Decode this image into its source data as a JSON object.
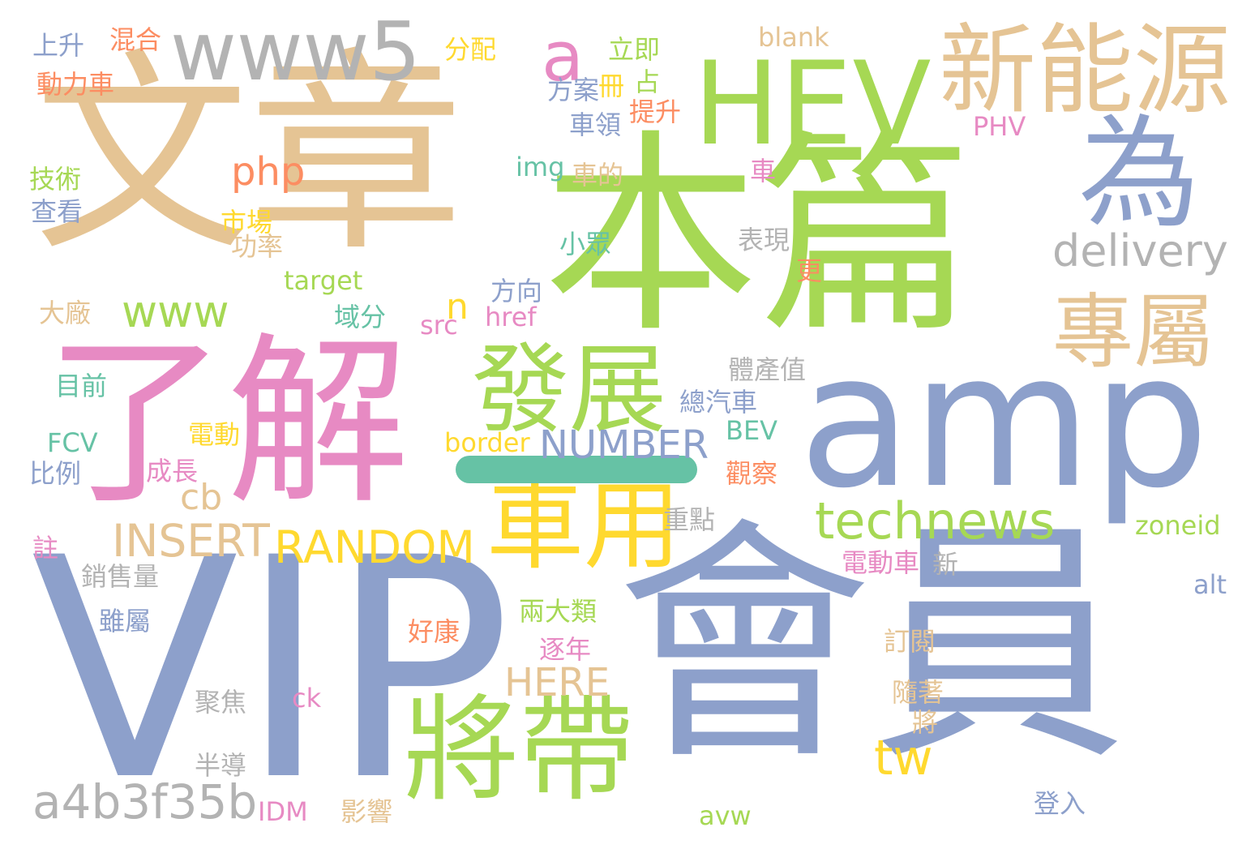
{
  "palette": {
    "tan": "#e5c494",
    "green": "#a6d854",
    "blue": "#8da0cb",
    "pink": "#e78ac3",
    "gray": "#b3b3b3",
    "orange": "#fc8d62",
    "yellow": "#ffd92f",
    "teal": "#66c2a5"
  },
  "words": [
    {
      "text": "文章",
      "color": "tan"
    },
    {
      "text": "本篇",
      "color": "green"
    },
    {
      "text": "VIP",
      "color": "blue"
    },
    {
      "text": "會員",
      "color": "blue"
    },
    {
      "text": "了解",
      "color": "pink"
    },
    {
      "text": "amp",
      "color": "blue"
    },
    {
      "text": "HEV",
      "color": "green"
    },
    {
      "text": "新能源",
      "color": "tan"
    },
    {
      "text": "www5",
      "color": "gray"
    },
    {
      "text": "為",
      "color": "blue"
    },
    {
      "text": "a",
      "color": "pink"
    },
    {
      "text": "將帶",
      "color": "green"
    },
    {
      "text": "發展",
      "color": "green"
    },
    {
      "text": "車用",
      "color": "yellow"
    },
    {
      "text": "專屬",
      "color": "tan"
    },
    {
      "text": "—",
      "color": "teal"
    },
    {
      "text": "delivery",
      "color": "gray"
    },
    {
      "text": "www",
      "color": "green"
    },
    {
      "text": "php",
      "color": "orange"
    },
    {
      "text": "technews",
      "color": "green"
    },
    {
      "text": "a4b3f35b",
      "color": "gray"
    },
    {
      "text": "tw",
      "color": "yellow"
    },
    {
      "text": "RANDOM",
      "color": "yellow"
    },
    {
      "text": "INSERT",
      "color": "tan"
    },
    {
      "text": "NUMBER",
      "color": "blue"
    },
    {
      "text": "HERE",
      "color": "tan"
    },
    {
      "text": "cb",
      "color": "tan"
    },
    {
      "text": "n",
      "color": "yellow"
    },
    {
      "text": "blank",
      "color": "tan"
    },
    {
      "text": "上升",
      "color": "blue"
    },
    {
      "text": "混合",
      "color": "orange"
    },
    {
      "text": "分配",
      "color": "yellow"
    },
    {
      "text": "立即",
      "color": "green"
    },
    {
      "text": "動力車",
      "color": "orange"
    },
    {
      "text": "方案",
      "color": "blue"
    },
    {
      "text": "冊",
      "color": "yellow"
    },
    {
      "text": "占",
      "color": "green"
    },
    {
      "text": "提升",
      "color": "orange"
    },
    {
      "text": "車領",
      "color": "blue"
    },
    {
      "text": "PHV",
      "color": "pink"
    },
    {
      "text": "技術",
      "color": "green"
    },
    {
      "text": "img",
      "color": "teal"
    },
    {
      "text": "車的",
      "color": "tan"
    },
    {
      "text": "車",
      "color": "pink"
    },
    {
      "text": "查看",
      "color": "blue"
    },
    {
      "text": "市場",
      "color": "yellow"
    },
    {
      "text": "功率",
      "color": "tan"
    },
    {
      "text": "小眾",
      "color": "teal"
    },
    {
      "text": "表現",
      "color": "gray"
    },
    {
      "text": "更",
      "color": "orange"
    },
    {
      "text": "target",
      "color": "green"
    },
    {
      "text": "方向",
      "color": "blue"
    },
    {
      "text": "大廠",
      "color": "tan"
    },
    {
      "text": "域分",
      "color": "teal"
    },
    {
      "text": "src",
      "color": "pink"
    },
    {
      "text": "href",
      "color": "pink"
    },
    {
      "text": "體產值",
      "color": "gray"
    },
    {
      "text": "目前",
      "color": "teal"
    },
    {
      "text": "總汽車",
      "color": "blue"
    },
    {
      "text": "電動",
      "color": "yellow"
    },
    {
      "text": "BEV",
      "color": "teal"
    },
    {
      "text": "FCV",
      "color": "teal"
    },
    {
      "text": "border",
      "color": "yellow"
    },
    {
      "text": "比例",
      "color": "blue"
    },
    {
      "text": "成長",
      "color": "pink"
    },
    {
      "text": "觀察",
      "color": "orange"
    },
    {
      "text": "重點",
      "color": "gray"
    },
    {
      "text": "zoneid",
      "color": "green"
    },
    {
      "text": "註",
      "color": "pink"
    },
    {
      "text": "電動車",
      "color": "pink"
    },
    {
      "text": "新",
      "color": "gray"
    },
    {
      "text": "銷售量",
      "color": "gray"
    },
    {
      "text": "alt",
      "color": "blue"
    },
    {
      "text": "雖屬",
      "color": "blue"
    },
    {
      "text": "兩大類",
      "color": "green"
    },
    {
      "text": "好康",
      "color": "orange"
    },
    {
      "text": "逐年",
      "color": "pink"
    },
    {
      "text": "訂閱",
      "color": "tan"
    },
    {
      "text": "隨著",
      "color": "tan"
    },
    {
      "text": "聚焦",
      "color": "gray"
    },
    {
      "text": "ck",
      "color": "pink"
    },
    {
      "text": "將",
      "color": "tan"
    },
    {
      "text": "半導",
      "color": "gray"
    },
    {
      "text": "IDM",
      "color": "pink"
    },
    {
      "text": "影響",
      "color": "tan"
    },
    {
      "text": "avw",
      "color": "green"
    },
    {
      "text": "登入",
      "color": "blue"
    }
  ]
}
